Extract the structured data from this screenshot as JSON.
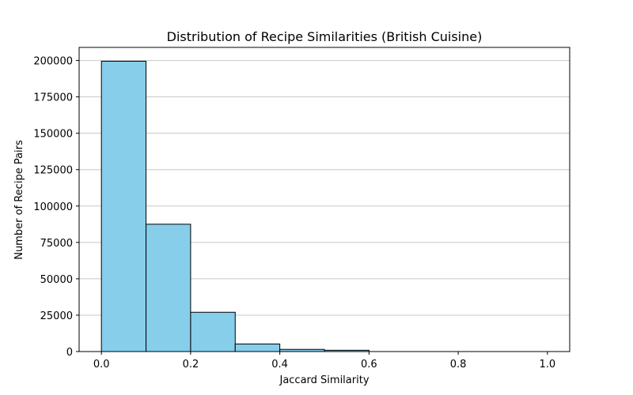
{
  "chart_data": {
    "type": "bar",
    "title": "Distribution of Recipe Similarities (British Cuisine)",
    "xlabel": "Jaccard Similarity",
    "ylabel": "Number of Recipe Pairs",
    "bin_edges": [
      0.0,
      0.1,
      0.2,
      0.3,
      0.4,
      0.5,
      0.6,
      0.7,
      0.8,
      0.9,
      1.0
    ],
    "values": [
      199500,
      87500,
      27000,
      5200,
      1500,
      900,
      0,
      0,
      0,
      0
    ],
    "xlim": [
      -0.05,
      1.05
    ],
    "ylim": [
      0,
      209000
    ],
    "xticks": [
      0.0,
      0.2,
      0.4,
      0.6,
      0.8,
      1.0
    ],
    "xtick_labels": [
      "0.0",
      "0.2",
      "0.4",
      "0.6",
      "0.8",
      "1.0"
    ],
    "yticks": [
      0,
      25000,
      50000,
      75000,
      100000,
      125000,
      150000,
      175000,
      200000
    ],
    "ytick_labels": [
      "0",
      "25000",
      "50000",
      "75000",
      "100000",
      "125000",
      "150000",
      "175000",
      "200000"
    ],
    "grid": "y",
    "bar_color": "#87CEEB",
    "edge_color": "#000000",
    "grid_color": "#c8c8c8"
  }
}
